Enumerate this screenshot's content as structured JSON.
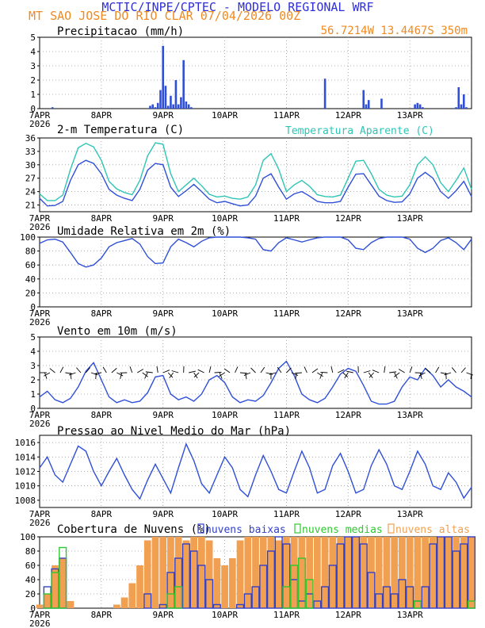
{
  "header": {
    "line1": "MCTIC/INPE/CPTEC - MODELO REGIONAL WRF",
    "line2": "MT SAO JOSE DO RIO CLAR  07/04/2026 00Z",
    "location": "56.7214W 13.4467S 350m"
  },
  "colors": {
    "header_blue": "#2f2fd8",
    "header_orange": "#f08a22",
    "series_blue": "#2f4fd8",
    "series_cyan": "#2ec5b5",
    "cloud_low": "#3340c8",
    "cloud_mid": "#2fc82f",
    "cloud_high": "#f0a050"
  },
  "x_axis": {
    "tick_labels": [
      "7APR",
      "8APR",
      "9APR",
      "10APR",
      "11APR",
      "12APR",
      "13APR"
    ],
    "year_label": "2026",
    "range_hours": [
      0,
      168
    ]
  },
  "chart_data": [
    {
      "id": "precip",
      "type": "bar",
      "title": "Precipitacao (mm/h)",
      "ylim": [
        0,
        5
      ],
      "yticks": [
        0,
        1,
        2,
        3,
        4,
        5
      ],
      "x_hours": [
        5,
        43,
        44,
        45,
        46,
        47,
        48,
        49,
        50,
        51,
        52,
        53,
        54,
        55,
        56,
        57,
        58,
        59,
        111,
        126,
        127,
        128,
        133,
        146,
        147,
        148,
        149,
        162,
        163,
        164,
        165,
        166
      ],
      "values": [
        0.1,
        0.2,
        0.3,
        0.1,
        0.4,
        1.3,
        4.4,
        1.6,
        0.2,
        0.9,
        0.3,
        2.0,
        0.3,
        0.8,
        3.4,
        0.5,
        0.3,
        0.1,
        2.1,
        1.3,
        0.3,
        0.6,
        0.7,
        0.3,
        0.4,
        0.3,
        0.1,
        0.1,
        1.5,
        0.3,
        1.0,
        0.1
      ]
    },
    {
      "id": "temperature",
      "type": "line",
      "title": "2-m Temperatura (C)",
      "legend": "Temperatura Aparente (C)",
      "ylim": [
        19.5,
        36
      ],
      "yticks": [
        21,
        24,
        27,
        30,
        33,
        36
      ],
      "x_hours": [
        0,
        3,
        6,
        9,
        12,
        15,
        18,
        21,
        24,
        27,
        30,
        33,
        36,
        39,
        42,
        45,
        48,
        51,
        54,
        57,
        60,
        63,
        66,
        69,
        72,
        75,
        78,
        81,
        84,
        87,
        90,
        93,
        96,
        99,
        102,
        105,
        108,
        111,
        114,
        117,
        120,
        123,
        126,
        129,
        132,
        135,
        138,
        141,
        144,
        147,
        150,
        153,
        156,
        159,
        162,
        165,
        168
      ],
      "series": [
        {
          "name": "2-m Temperatura (C)",
          "values": [
            22.5,
            20.8,
            20.9,
            21.8,
            26.5,
            30.0,
            31.0,
            30.3,
            28.0,
            24.5,
            23.2,
            22.5,
            22.0,
            24.5,
            28.8,
            30.3,
            30.0,
            25.0,
            22.9,
            24.2,
            25.6,
            24.0,
            22.3,
            21.5,
            21.8,
            21.3,
            20.8,
            21.0,
            23.0,
            27.0,
            28.0,
            25.0,
            22.3,
            23.5,
            24.0,
            23.0,
            21.8,
            21.5,
            21.5,
            21.8,
            25.0,
            27.9,
            28.0,
            25.5,
            23.0,
            22.0,
            21.6,
            21.7,
            23.5,
            27.0,
            28.3,
            27.0,
            24.0,
            22.5,
            24.2,
            26.3,
            22.9
          ]
        },
        {
          "name": "Temperatura Aparente (C)",
          "values": [
            23.5,
            22.0,
            22.0,
            23.2,
            29.0,
            33.8,
            34.8,
            34.0,
            31.0,
            26.3,
            24.6,
            23.8,
            23.3,
            26.5,
            32.0,
            34.9,
            34.6,
            28.0,
            24.0,
            25.5,
            27.0,
            25.3,
            23.4,
            22.8,
            23.0,
            22.5,
            22.3,
            22.8,
            25.5,
            31.0,
            32.5,
            29.0,
            24.0,
            25.5,
            26.5,
            25.2,
            23.3,
            22.9,
            22.8,
            23.2,
            27.0,
            30.8,
            31.0,
            28.0,
            24.5,
            23.2,
            22.8,
            23.0,
            25.5,
            30.0,
            31.8,
            30.0,
            26.0,
            24.0,
            26.5,
            29.3,
            24.5
          ]
        }
      ]
    },
    {
      "id": "humidity",
      "type": "line",
      "title": "Umidade Relativa em 2m (%)",
      "ylim": [
        0,
        100
      ],
      "yticks": [
        0,
        20,
        40,
        60,
        80,
        100
      ],
      "x_hours": [
        0,
        3,
        6,
        9,
        12,
        15,
        18,
        21,
        24,
        27,
        30,
        33,
        36,
        39,
        42,
        45,
        48,
        51,
        54,
        57,
        60,
        63,
        66,
        69,
        72,
        75,
        78,
        81,
        84,
        87,
        90,
        93,
        96,
        99,
        102,
        105,
        108,
        111,
        114,
        117,
        120,
        123,
        126,
        129,
        132,
        135,
        138,
        141,
        144,
        147,
        150,
        153,
        156,
        159,
        162,
        165,
        168
      ],
      "values": [
        91,
        96,
        97,
        93,
        78,
        62,
        57,
        60,
        70,
        86,
        92,
        95,
        98,
        90,
        72,
        62,
        63,
        86,
        97,
        92,
        86,
        94,
        99,
        100,
        100,
        100,
        100,
        99,
        97,
        82,
        80,
        92,
        99,
        96,
        93,
        96,
        99,
        100,
        100,
        100,
        96,
        84,
        82,
        92,
        98,
        100,
        100,
        100,
        97,
        84,
        78,
        84,
        95,
        99,
        92,
        82,
        97
      ]
    },
    {
      "id": "wind",
      "type": "line",
      "title": "Vento em 10m (m/s)",
      "ylim": [
        0,
        5
      ],
      "yticks": [
        0,
        1,
        2,
        3,
        4,
        5
      ],
      "x_hours": [
        0,
        3,
        6,
        9,
        12,
        15,
        18,
        21,
        24,
        27,
        30,
        33,
        36,
        39,
        42,
        45,
        48,
        51,
        54,
        57,
        60,
        63,
        66,
        69,
        72,
        75,
        78,
        81,
        84,
        87,
        90,
        93,
        96,
        99,
        102,
        105,
        108,
        111,
        114,
        117,
        120,
        123,
        126,
        129,
        132,
        135,
        138,
        141,
        144,
        147,
        150,
        153,
        156,
        159,
        162,
        165,
        168
      ],
      "values": [
        0.8,
        1.2,
        0.6,
        0.4,
        0.7,
        1.5,
        2.6,
        3.2,
        2.0,
        0.8,
        0.4,
        0.6,
        0.4,
        0.5,
        1.1,
        2.2,
        2.3,
        1.0,
        0.6,
        0.8,
        0.5,
        1.0,
        2.0,
        2.3,
        1.8,
        0.8,
        0.4,
        0.6,
        0.5,
        0.9,
        1.8,
        2.8,
        3.3,
        2.3,
        1.0,
        0.6,
        0.4,
        0.7,
        1.5,
        2.4,
        2.8,
        2.6,
        1.6,
        0.5,
        0.3,
        0.3,
        0.5,
        1.5,
        2.2,
        2.0,
        2.8,
        2.3,
        1.5,
        2.0,
        1.5,
        1.2,
        0.8
      ],
      "barb_level_ms": 2.5
    },
    {
      "id": "pressure",
      "type": "line",
      "title": "Pressao ao Nivel Medio do Mar (hPa)",
      "ylim": [
        1007,
        1017
      ],
      "yticks": [
        1008,
        1010,
        1012,
        1014,
        1016
      ],
      "x_hours": [
        0,
        3,
        6,
        9,
        12,
        15,
        18,
        21,
        24,
        27,
        30,
        33,
        36,
        39,
        42,
        45,
        48,
        51,
        54,
        57,
        60,
        63,
        66,
        69,
        72,
        75,
        78,
        81,
        84,
        87,
        90,
        93,
        96,
        99,
        102,
        105,
        108,
        111,
        114,
        117,
        120,
        123,
        126,
        129,
        132,
        135,
        138,
        141,
        144,
        147,
        150,
        153,
        156,
        159,
        162,
        165,
        168
      ],
      "values": [
        1012.5,
        1014.0,
        1011.5,
        1010.5,
        1013.0,
        1015.5,
        1014.8,
        1012.0,
        1010.0,
        1012.0,
        1013.8,
        1011.5,
        1009.5,
        1008.2,
        1010.8,
        1013.0,
        1011.0,
        1009.0,
        1012.5,
        1015.8,
        1013.5,
        1010.3,
        1009.0,
        1011.5,
        1014.0,
        1012.5,
        1009.5,
        1008.5,
        1011.5,
        1014.2,
        1012.0,
        1009.5,
        1009.0,
        1012.0,
        1014.8,
        1012.5,
        1009.0,
        1009.5,
        1012.8,
        1014.5,
        1012.0,
        1009.0,
        1009.5,
        1012.8,
        1015.0,
        1013.0,
        1010.0,
        1009.5,
        1012.0,
        1014.8,
        1013.0,
        1010.0,
        1009.5,
        1011.8,
        1010.5,
        1008.3,
        1009.8
      ]
    },
    {
      "id": "clouds",
      "type": "bar",
      "title": "Cobertura de Nuvens (%)",
      "ylim": [
        0,
        100
      ],
      "yticks": [
        0,
        20,
        40,
        60,
        80,
        100
      ],
      "legend": [
        "nuvens baixas",
        "nuvens medias",
        "nuvens altas"
      ],
      "x_hours": [
        0,
        3,
        6,
        9,
        12,
        15,
        18,
        21,
        24,
        27,
        30,
        33,
        36,
        39,
        42,
        45,
        48,
        51,
        54,
        57,
        60,
        63,
        66,
        69,
        72,
        75,
        78,
        81,
        84,
        87,
        90,
        93,
        96,
        99,
        102,
        105,
        108,
        111,
        114,
        117,
        120,
        123,
        126,
        129,
        132,
        135,
        138,
        141,
        144,
        147,
        150,
        153,
        156,
        159,
        162,
        165,
        168
      ],
      "series": [
        {
          "name": "nuvens altas",
          "values": [
            5,
            20,
            60,
            70,
            10,
            0,
            0,
            0,
            0,
            0,
            5,
            15,
            35,
            60,
            95,
            100,
            100,
            100,
            100,
            95,
            100,
            100,
            95,
            70,
            60,
            70,
            95,
            100,
            100,
            100,
            100,
            95,
            100,
            100,
            100,
            100,
            100,
            100,
            100,
            100,
            100,
            100,
            100,
            100,
            100,
            100,
            100,
            100,
            100,
            100,
            100,
            100,
            100,
            100,
            100,
            100,
            100
          ]
        },
        {
          "name": "nuvens baixas",
          "values": [
            0,
            30,
            55,
            70,
            0,
            0,
            0,
            0,
            0,
            0,
            0,
            0,
            0,
            0,
            20,
            0,
            5,
            50,
            70,
            90,
            80,
            60,
            40,
            5,
            0,
            0,
            5,
            20,
            30,
            60,
            80,
            100,
            90,
            40,
            10,
            20,
            10,
            30,
            60,
            90,
            100,
            100,
            90,
            50,
            20,
            30,
            20,
            40,
            30,
            10,
            30,
            90,
            100,
            100,
            80,
            90,
            100
          ]
        },
        {
          "name": "nuvens medias",
          "values": [
            0,
            20,
            50,
            85,
            0,
            0,
            0,
            0,
            0,
            0,
            0,
            0,
            0,
            0,
            0,
            0,
            0,
            20,
            30,
            0,
            0,
            0,
            0,
            0,
            0,
            0,
            0,
            0,
            0,
            0,
            0,
            0,
            30,
            60,
            70,
            40,
            0,
            0,
            0,
            0,
            0,
            0,
            0,
            0,
            0,
            0,
            0,
            0,
            0,
            10,
            0,
            0,
            0,
            0,
            0,
            0,
            10
          ]
        }
      ]
    }
  ]
}
